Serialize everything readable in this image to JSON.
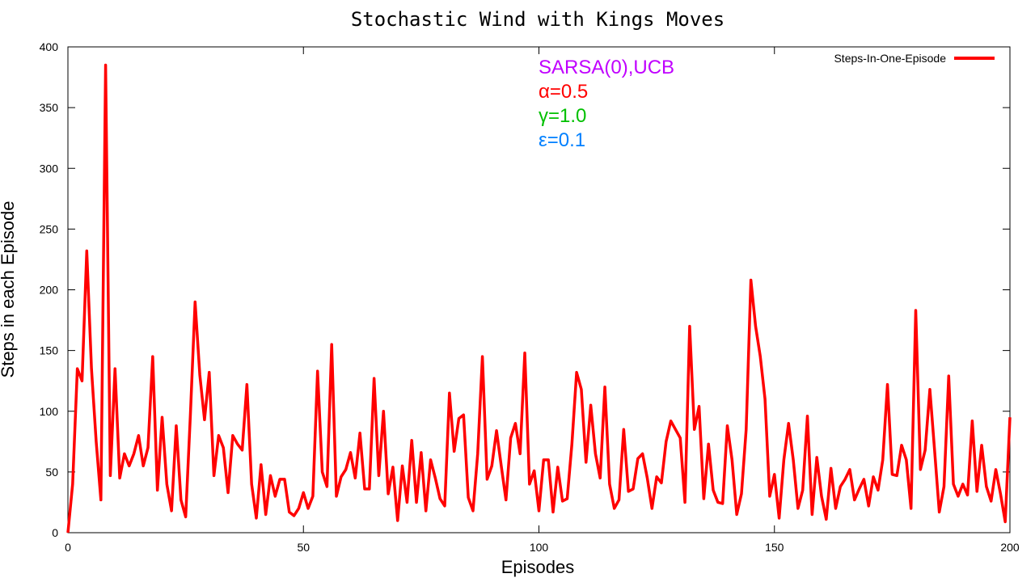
{
  "chart_data": {
    "type": "line",
    "title": "Stochastic Wind with Kings Moves",
    "xlabel": "Episodes",
    "ylabel": "Steps in each Episode",
    "xlim": [
      0,
      200
    ],
    "ylim": [
      0,
      400
    ],
    "xticks": [
      0,
      50,
      100,
      150,
      200
    ],
    "yticks": [
      0,
      50,
      100,
      150,
      200,
      250,
      300,
      350,
      400
    ],
    "grid": false,
    "legend_position": "top-right",
    "annotations": [
      {
        "text": "SARSA(0),UCB",
        "color": "#c000ff"
      },
      {
        "text": "α=0.5",
        "color": "#ff0000"
      },
      {
        "text": "γ=1.0",
        "color": "#00c000"
      },
      {
        "text": "ε=0.1",
        "color": "#0080ff"
      }
    ],
    "series": [
      {
        "name": "Steps-In-One-Episode",
        "color": "#ff0000",
        "x": [
          0,
          1,
          2,
          3,
          4,
          5,
          6,
          7,
          8,
          9,
          10,
          11,
          12,
          13,
          14,
          15,
          16,
          17,
          18,
          19,
          20,
          21,
          22,
          23,
          24,
          25,
          26,
          27,
          28,
          29,
          30,
          31,
          32,
          33,
          34,
          35,
          36,
          37,
          38,
          39,
          40,
          41,
          42,
          43,
          44,
          45,
          46,
          47,
          48,
          49,
          50,
          51,
          52,
          53,
          54,
          55,
          56,
          57,
          58,
          59,
          60,
          61,
          62,
          63,
          64,
          65,
          66,
          67,
          68,
          69,
          70,
          71,
          72,
          73,
          74,
          75,
          76,
          77,
          78,
          79,
          80,
          81,
          82,
          83,
          84,
          85,
          86,
          87,
          88,
          89,
          90,
          91,
          92,
          93,
          94,
          95,
          96,
          97,
          98,
          99,
          100,
          101,
          102,
          103,
          104,
          105,
          106,
          107,
          108,
          109,
          110,
          111,
          112,
          113,
          114,
          115,
          116,
          117,
          118,
          119,
          120,
          121,
          122,
          123,
          124,
          125,
          126,
          127,
          128,
          129,
          130,
          131,
          132,
          133,
          134,
          135,
          136,
          137,
          138,
          139,
          140,
          141,
          142,
          143,
          144,
          145,
          146,
          147,
          148,
          149,
          150,
          151,
          152,
          153,
          154,
          155,
          156,
          157,
          158,
          159,
          160,
          161,
          162,
          163,
          164,
          165,
          166,
          167,
          168,
          169,
          170,
          171,
          172,
          173,
          174,
          175,
          176,
          177,
          178,
          179,
          180,
          181,
          182,
          183,
          184,
          185,
          186,
          187,
          188,
          189,
          190,
          191,
          192,
          193,
          194,
          195,
          196,
          197,
          198,
          199,
          200
        ],
        "values": [
          0,
          40,
          135,
          125,
          232,
          135,
          75,
          27,
          385,
          47,
          135,
          45,
          65,
          55,
          65,
          80,
          55,
          70,
          145,
          35,
          95,
          40,
          18,
          88,
          27,
          13,
          97,
          190,
          130,
          93,
          132,
          47,
          80,
          70,
          33,
          80,
          73,
          68,
          122,
          40,
          12,
          56,
          15,
          47,
          30,
          44,
          44,
          17,
          14,
          20,
          33,
          20,
          30,
          133,
          50,
          38,
          155,
          30,
          46,
          52,
          66,
          45,
          82,
          36,
          36,
          127,
          47,
          100,
          32,
          54,
          10,
          55,
          25,
          76,
          25,
          66,
          18,
          60,
          45,
          28,
          22,
          115,
          67,
          94,
          97,
          29,
          18,
          65,
          145,
          44,
          55,
          84,
          55,
          27,
          78,
          90,
          65,
          148,
          40,
          51,
          18,
          60,
          60,
          17,
          54,
          26,
          28,
          73,
          132,
          118,
          58,
          105,
          65,
          45,
          120,
          40,
          20,
          27,
          85,
          34,
          36,
          61,
          65,
          45,
          20,
          46,
          41,
          75,
          92,
          85,
          78,
          25,
          170,
          85,
          104,
          28,
          73,
          35,
          25,
          24,
          88,
          60,
          15,
          32,
          85,
          208,
          170,
          145,
          110,
          30,
          48,
          12,
          60,
          90,
          60,
          20,
          35,
          96,
          15,
          62,
          30,
          11,
          53,
          20,
          38,
          44,
          52,
          27,
          36,
          44,
          22,
          46,
          35,
          60,
          122,
          48,
          47,
          72,
          60,
          20,
          183,
          52,
          68,
          118,
          68,
          17,
          38,
          129,
          40,
          30,
          40,
          31,
          92,
          34,
          72,
          38,
          26,
          52,
          32,
          9,
          95
        ]
      }
    ]
  }
}
